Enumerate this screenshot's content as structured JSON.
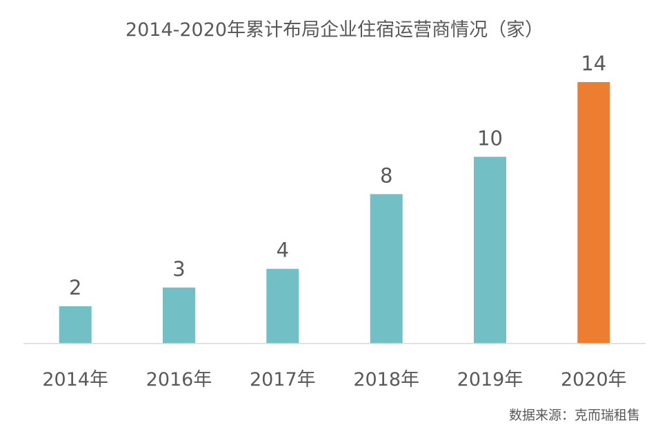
{
  "chart_data": {
    "type": "bar",
    "title": "2014-2020年累计布局企业住宿运营商情况（家）",
    "categories": [
      "2014年",
      "2016年",
      "2017年",
      "2018年",
      "2019年",
      "2020年"
    ],
    "values": [
      2,
      3,
      4,
      8,
      10,
      14
    ],
    "xlabel": "",
    "ylabel": "",
    "ylim": [
      0,
      14
    ],
    "grid": false,
    "legend": "none",
    "colors": {
      "default_bar": "#72BFC5",
      "highlight_bar": "#ED7D31",
      "axis_line": "#D9D9D9",
      "text": "#595959"
    },
    "highlight_index": 5
  },
  "footer": {
    "source": "数据来源：克而瑞租售"
  }
}
